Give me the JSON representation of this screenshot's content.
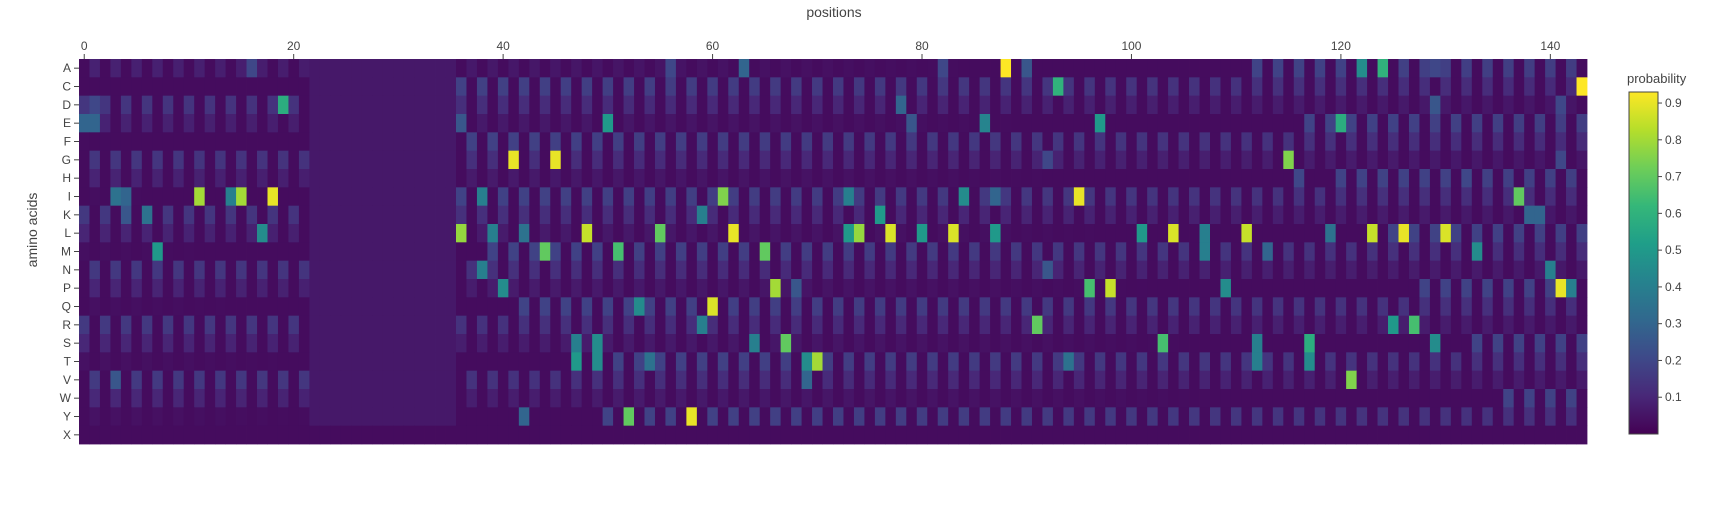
{
  "chart_data": {
    "type": "heatmap",
    "title": "",
    "xlabel": "positions",
    "ylabel": "amino acids",
    "x_range": [
      -0.5,
      143.5
    ],
    "x_ticks": [
      0,
      20,
      40,
      60,
      80,
      100,
      120,
      140
    ],
    "x_axis_side": "top",
    "y_categories": [
      "A",
      "C",
      "D",
      "E",
      "F",
      "G",
      "H",
      "I",
      "K",
      "L",
      "M",
      "N",
      "P",
      "Q",
      "R",
      "S",
      "T",
      "V",
      "W",
      "Y",
      "X"
    ],
    "colorscale": "viridis",
    "colorscale_stops": [
      "#440154",
      "#482878",
      "#3e4989",
      "#31688e",
      "#26828e",
      "#1f9e89",
      "#35b779",
      "#6ece58",
      "#b5de2b",
      "#fde725"
    ],
    "colorbar": {
      "title": "probability",
      "range": [
        0,
        0.93
      ],
      "ticks": [
        0.1,
        0.2,
        0.3,
        0.4,
        0.5,
        0.6,
        0.7,
        0.8,
        0.9
      ],
      "tick_labels": [
        "0.1",
        "0.2",
        "0.3",
        "0.4",
        "0.5",
        "0.6",
        "0.7",
        "0.8",
        "0.9"
      ]
    },
    "background_probability": 0.03,
    "uniform_block": {
      "x_start": 22,
      "x_end": 35,
      "probability": 0.06
    },
    "values": [
      {
        "aa": "A",
        "x": 88,
        "v": 0.93
      },
      {
        "aa": "A",
        "x": 90,
        "v": 0.25
      },
      {
        "aa": "A",
        "x": 122,
        "v": 0.45
      },
      {
        "aa": "A",
        "x": 124,
        "v": 0.6
      },
      {
        "aa": "A",
        "x": 16,
        "v": 0.2
      },
      {
        "aa": "A",
        "x": 56,
        "v": 0.2
      },
      {
        "aa": "A",
        "x": 63,
        "v": 0.3
      },
      {
        "aa": "A",
        "x": 82,
        "v": 0.2
      },
      {
        "aa": "A",
        "x": 129,
        "v": 0.2
      },
      {
        "aa": "C",
        "x": 93,
        "v": 0.6
      },
      {
        "aa": "C",
        "x": 143,
        "v": 0.93
      },
      {
        "aa": "D",
        "x": 19,
        "v": 0.58
      },
      {
        "aa": "D",
        "x": 78,
        "v": 0.3
      },
      {
        "aa": "D",
        "x": 129,
        "v": 0.25
      },
      {
        "aa": "D",
        "x": 141,
        "v": 0.2
      },
      {
        "aa": "D",
        "x": 1,
        "v": 0.2
      },
      {
        "aa": "E",
        "x": 50,
        "v": 0.5
      },
      {
        "aa": "E",
        "x": 97,
        "v": 0.5
      },
      {
        "aa": "E",
        "x": 120,
        "v": 0.58
      },
      {
        "aa": "E",
        "x": 86,
        "v": 0.42
      },
      {
        "aa": "E",
        "x": 0,
        "v": 0.3
      },
      {
        "aa": "E",
        "x": 1,
        "v": 0.3
      },
      {
        "aa": "E",
        "x": 36,
        "v": 0.25
      },
      {
        "aa": "E",
        "x": 79,
        "v": 0.25
      },
      {
        "aa": "G",
        "x": 41,
        "v": 0.9
      },
      {
        "aa": "G",
        "x": 45,
        "v": 0.9
      },
      {
        "aa": "G",
        "x": 115,
        "v": 0.75
      },
      {
        "aa": "G",
        "x": 92,
        "v": 0.2
      },
      {
        "aa": "G",
        "x": 141,
        "v": 0.2
      },
      {
        "aa": "H",
        "x": 116,
        "v": 0.2
      },
      {
        "aa": "H",
        "x": 132,
        "v": 0.2
      },
      {
        "aa": "I",
        "x": 11,
        "v": 0.8
      },
      {
        "aa": "I",
        "x": 15,
        "v": 0.8
      },
      {
        "aa": "I",
        "x": 18,
        "v": 0.9
      },
      {
        "aa": "I",
        "x": 61,
        "v": 0.75
      },
      {
        "aa": "I",
        "x": 95,
        "v": 0.9
      },
      {
        "aa": "I",
        "x": 137,
        "v": 0.7
      },
      {
        "aa": "I",
        "x": 84,
        "v": 0.45
      },
      {
        "aa": "I",
        "x": 73,
        "v": 0.4
      },
      {
        "aa": "I",
        "x": 38,
        "v": 0.4
      },
      {
        "aa": "I",
        "x": 3,
        "v": 0.35
      },
      {
        "aa": "I",
        "x": 4,
        "v": 0.3
      },
      {
        "aa": "I",
        "x": 14,
        "v": 0.4
      },
      {
        "aa": "I",
        "x": 87,
        "v": 0.3
      },
      {
        "aa": "K",
        "x": 6,
        "v": 0.35
      },
      {
        "aa": "K",
        "x": 59,
        "v": 0.4
      },
      {
        "aa": "K",
        "x": 76,
        "v": 0.5
      },
      {
        "aa": "K",
        "x": 138,
        "v": 0.3
      },
      {
        "aa": "K",
        "x": 139,
        "v": 0.3
      },
      {
        "aa": "K",
        "x": 4,
        "v": 0.25
      },
      {
        "aa": "L",
        "x": 36,
        "v": 0.78
      },
      {
        "aa": "L",
        "x": 48,
        "v": 0.85
      },
      {
        "aa": "L",
        "x": 55,
        "v": 0.7
      },
      {
        "aa": "L",
        "x": 62,
        "v": 0.9
      },
      {
        "aa": "L",
        "x": 74,
        "v": 0.78
      },
      {
        "aa": "L",
        "x": 77,
        "v": 0.88
      },
      {
        "aa": "L",
        "x": 83,
        "v": 0.88
      },
      {
        "aa": "L",
        "x": 104,
        "v": 0.88
      },
      {
        "aa": "L",
        "x": 111,
        "v": 0.85
      },
      {
        "aa": "L",
        "x": 123,
        "v": 0.85
      },
      {
        "aa": "L",
        "x": 126,
        "v": 0.9
      },
      {
        "aa": "L",
        "x": 130,
        "v": 0.88
      },
      {
        "aa": "L",
        "x": 17,
        "v": 0.45
      },
      {
        "aa": "L",
        "x": 73,
        "v": 0.5
      },
      {
        "aa": "L",
        "x": 80,
        "v": 0.5
      },
      {
        "aa": "L",
        "x": 87,
        "v": 0.5
      },
      {
        "aa": "L",
        "x": 101,
        "v": 0.5
      },
      {
        "aa": "L",
        "x": 107,
        "v": 0.4
      },
      {
        "aa": "L",
        "x": 39,
        "v": 0.4
      },
      {
        "aa": "L",
        "x": 42,
        "v": 0.35
      },
      {
        "aa": "L",
        "x": 119,
        "v": 0.35
      },
      {
        "aa": "M",
        "x": 7,
        "v": 0.5
      },
      {
        "aa": "M",
        "x": 44,
        "v": 0.7
      },
      {
        "aa": "M",
        "x": 51,
        "v": 0.65
      },
      {
        "aa": "M",
        "x": 65,
        "v": 0.7
      },
      {
        "aa": "M",
        "x": 107,
        "v": 0.4
      },
      {
        "aa": "M",
        "x": 113,
        "v": 0.3
      },
      {
        "aa": "M",
        "x": 133,
        "v": 0.45
      },
      {
        "aa": "N",
        "x": 38,
        "v": 0.4
      },
      {
        "aa": "N",
        "x": 140,
        "v": 0.4
      },
      {
        "aa": "N",
        "x": 92,
        "v": 0.25
      },
      {
        "aa": "P",
        "x": 40,
        "v": 0.45
      },
      {
        "aa": "P",
        "x": 66,
        "v": 0.8
      },
      {
        "aa": "P",
        "x": 96,
        "v": 0.65
      },
      {
        "aa": "P",
        "x": 98,
        "v": 0.85
      },
      {
        "aa": "P",
        "x": 109,
        "v": 0.45
      },
      {
        "aa": "P",
        "x": 141,
        "v": 0.9
      },
      {
        "aa": "P",
        "x": 142,
        "v": 0.4
      },
      {
        "aa": "P",
        "x": 68,
        "v": 0.25
      },
      {
        "aa": "Q",
        "x": 53,
        "v": 0.45
      },
      {
        "aa": "Q",
        "x": 60,
        "v": 0.88
      },
      {
        "aa": "R",
        "x": 59,
        "v": 0.4
      },
      {
        "aa": "R",
        "x": 91,
        "v": 0.7
      },
      {
        "aa": "R",
        "x": 125,
        "v": 0.5
      },
      {
        "aa": "R",
        "x": 127,
        "v": 0.65
      },
      {
        "aa": "S",
        "x": 47,
        "v": 0.4
      },
      {
        "aa": "S",
        "x": 49,
        "v": 0.45
      },
      {
        "aa": "S",
        "x": 64,
        "v": 0.4
      },
      {
        "aa": "S",
        "x": 67,
        "v": 0.7
      },
      {
        "aa": "S",
        "x": 103,
        "v": 0.65
      },
      {
        "aa": "S",
        "x": 112,
        "v": 0.4
      },
      {
        "aa": "S",
        "x": 117,
        "v": 0.58
      },
      {
        "aa": "S",
        "x": 129,
        "v": 0.45
      },
      {
        "aa": "T",
        "x": 47,
        "v": 0.5
      },
      {
        "aa": "T",
        "x": 49,
        "v": 0.45
      },
      {
        "aa": "T",
        "x": 54,
        "v": 0.35
      },
      {
        "aa": "T",
        "x": 70,
        "v": 0.8
      },
      {
        "aa": "T",
        "x": 69,
        "v": 0.45
      },
      {
        "aa": "T",
        "x": 94,
        "v": 0.35
      },
      {
        "aa": "T",
        "x": 112,
        "v": 0.4
      },
      {
        "aa": "T",
        "x": 117,
        "v": 0.45
      },
      {
        "aa": "V",
        "x": 121,
        "v": 0.75
      },
      {
        "aa": "V",
        "x": 69,
        "v": 0.3
      },
      {
        "aa": "V",
        "x": 3,
        "v": 0.25
      },
      {
        "aa": "Y",
        "x": 52,
        "v": 0.7
      },
      {
        "aa": "Y",
        "x": 58,
        "v": 0.9
      },
      {
        "aa": "Y",
        "x": 42,
        "v": 0.3
      }
    ]
  }
}
